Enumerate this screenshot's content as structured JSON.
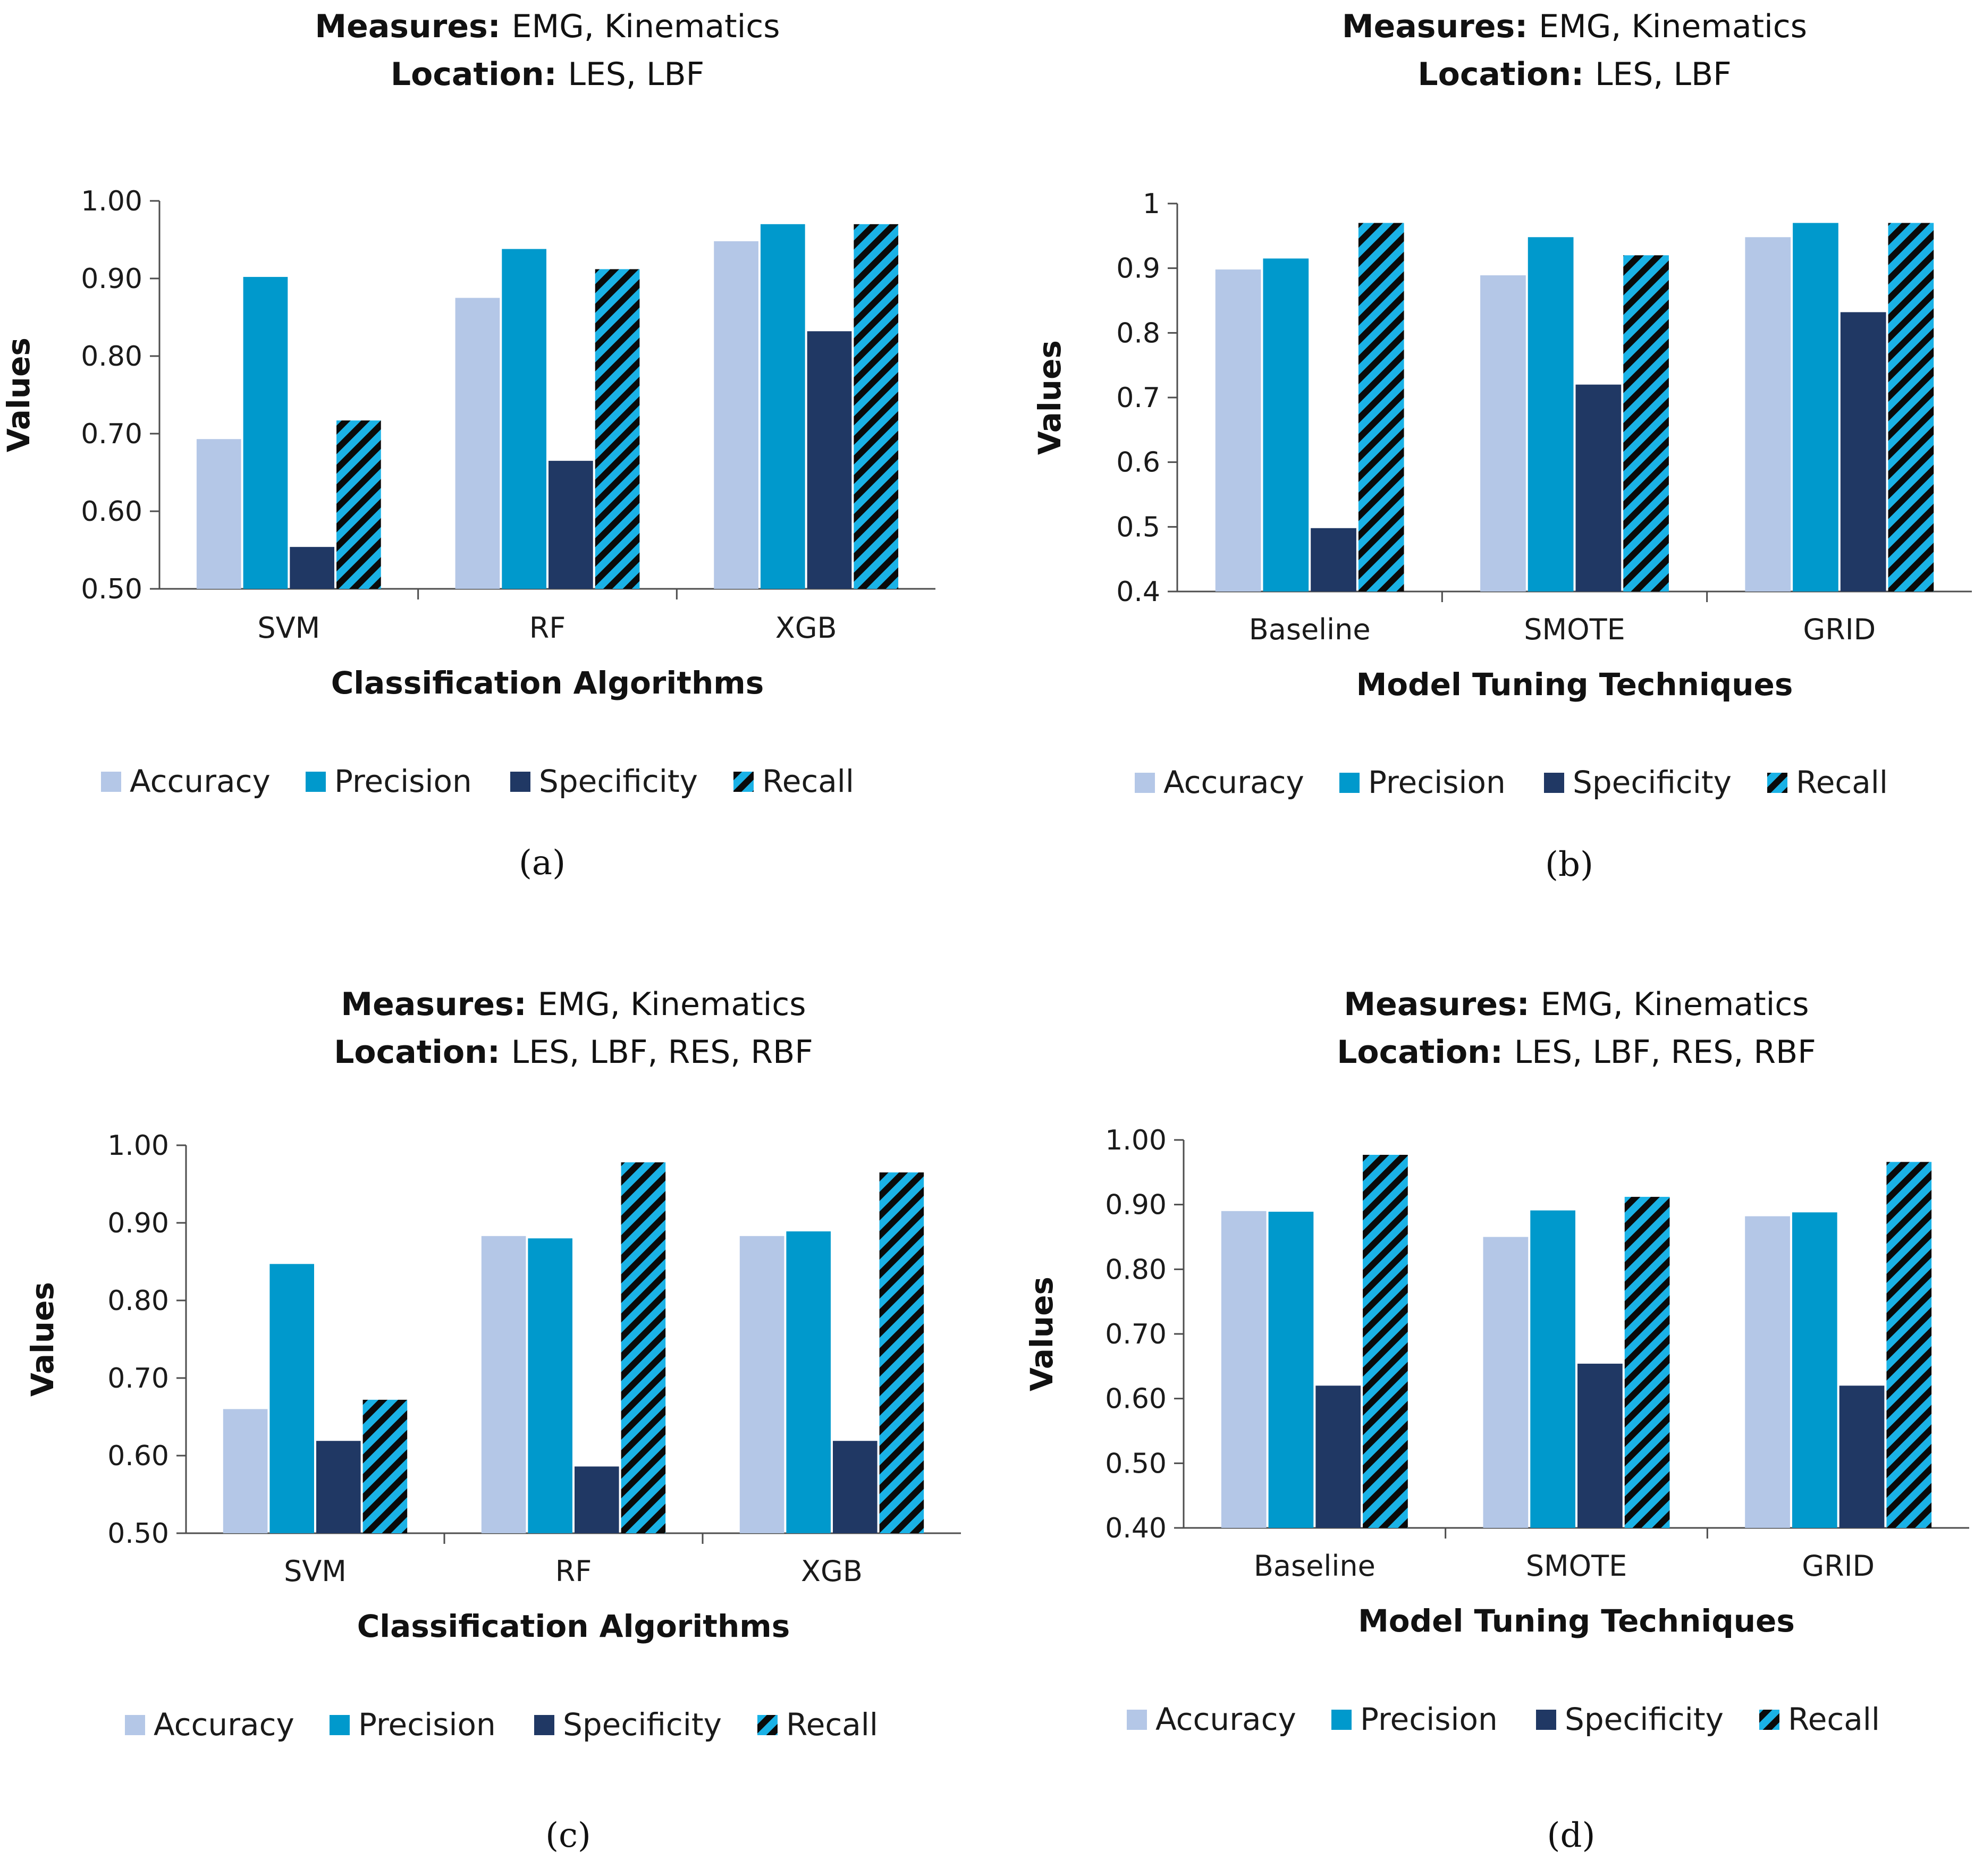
{
  "legend_labels": [
    "Accuracy",
    "Precision",
    "Specificity",
    "Recall"
  ],
  "colors": {
    "Accuracy": "#b4c7e7",
    "Precision": "#0099cc",
    "Specificity": "#203864",
    "Recall_stripe_a": "#1ab2e6",
    "Recall_stripe_b": "#0a0a0a",
    "axis": "#4d4d4d"
  },
  "title_measures_label": "Measures:",
  "title_location_label": "Location:",
  "y_axis_label": "Values",
  "chart_data": [
    {
      "type": "bar",
      "caption": "(a)",
      "title_measures": "EMG, Kinematics",
      "title_location": "LES, LBF",
      "xlabel": "Classification Algorithms",
      "ylabel": "Values",
      "categories": [
        "SVM",
        "RF",
        "XGB"
      ],
      "ylim": [
        0.5,
        1.0
      ],
      "yticks": [
        "0.50",
        "0.60",
        "0.70",
        "0.80",
        "0.90",
        "1.00"
      ],
      "series": [
        {
          "name": "Accuracy",
          "values": [
            0.693,
            0.875,
            0.948
          ]
        },
        {
          "name": "Precision",
          "values": [
            0.902,
            0.938,
            0.97
          ]
        },
        {
          "name": "Specificity",
          "values": [
            0.554,
            0.665,
            0.832
          ]
        },
        {
          "name": "Recall",
          "values": [
            0.717,
            0.912,
            0.97
          ]
        }
      ],
      "legend": "bottom"
    },
    {
      "type": "bar",
      "caption": "(b)",
      "title_measures": "EMG, Kinematics",
      "title_location": "LES, LBF",
      "xlabel": "Model Tuning Techniques",
      "ylabel": "Values",
      "categories": [
        "Baseline",
        "SMOTE",
        "GRID"
      ],
      "ylim": [
        0.4,
        1.0
      ],
      "yticks": [
        "0.4",
        "0.5",
        "0.6",
        "0.7",
        "0.8",
        "0.9",
        "1"
      ],
      "series": [
        {
          "name": "Accuracy",
          "values": [
            0.898,
            0.889,
            0.948
          ]
        },
        {
          "name": "Precision",
          "values": [
            0.915,
            0.948,
            0.97
          ]
        },
        {
          "name": "Specificity",
          "values": [
            0.498,
            0.72,
            0.832
          ]
        },
        {
          "name": "Recall",
          "values": [
            0.97,
            0.92,
            0.97
          ]
        }
      ],
      "legend": "bottom"
    },
    {
      "type": "bar",
      "caption": "(c)",
      "title_measures": "EMG, Kinematics",
      "title_location": "LES, LBF, RES, RBF",
      "xlabel": "Classification Algorithms",
      "ylabel": "Values",
      "categories": [
        "SVM",
        "RF",
        "XGB"
      ],
      "ylim": [
        0.5,
        1.0
      ],
      "yticks": [
        "0.50",
        "0.60",
        "0.70",
        "0.80",
        "0.90",
        "1.00"
      ],
      "series": [
        {
          "name": "Accuracy",
          "values": [
            0.66,
            0.883,
            0.883
          ]
        },
        {
          "name": "Precision",
          "values": [
            0.847,
            0.88,
            0.889
          ]
        },
        {
          "name": "Specificity",
          "values": [
            0.619,
            0.586,
            0.619
          ]
        },
        {
          "name": "Recall",
          "values": [
            0.672,
            0.978,
            0.965
          ]
        }
      ],
      "legend": "bottom"
    },
    {
      "type": "bar",
      "caption": "(d)",
      "title_measures": "EMG, Kinematics",
      "title_location": "LES, LBF, RES, RBF",
      "xlabel": "Model Tuning Techniques",
      "ylabel": "Values",
      "categories": [
        "Baseline",
        "SMOTE",
        "GRID"
      ],
      "ylim": [
        0.4,
        1.0
      ],
      "yticks": [
        "0.40",
        "0.50",
        "0.60",
        "0.70",
        "0.80",
        "0.90",
        "1.00"
      ],
      "series": [
        {
          "name": "Accuracy",
          "values": [
            0.89,
            0.85,
            0.882
          ]
        },
        {
          "name": "Precision",
          "values": [
            0.889,
            0.891,
            0.888
          ]
        },
        {
          "name": "Specificity",
          "values": [
            0.62,
            0.654,
            0.62
          ]
        },
        {
          "name": "Recall",
          "values": [
            0.977,
            0.912,
            0.966
          ]
        }
      ],
      "legend": "bottom"
    }
  ]
}
